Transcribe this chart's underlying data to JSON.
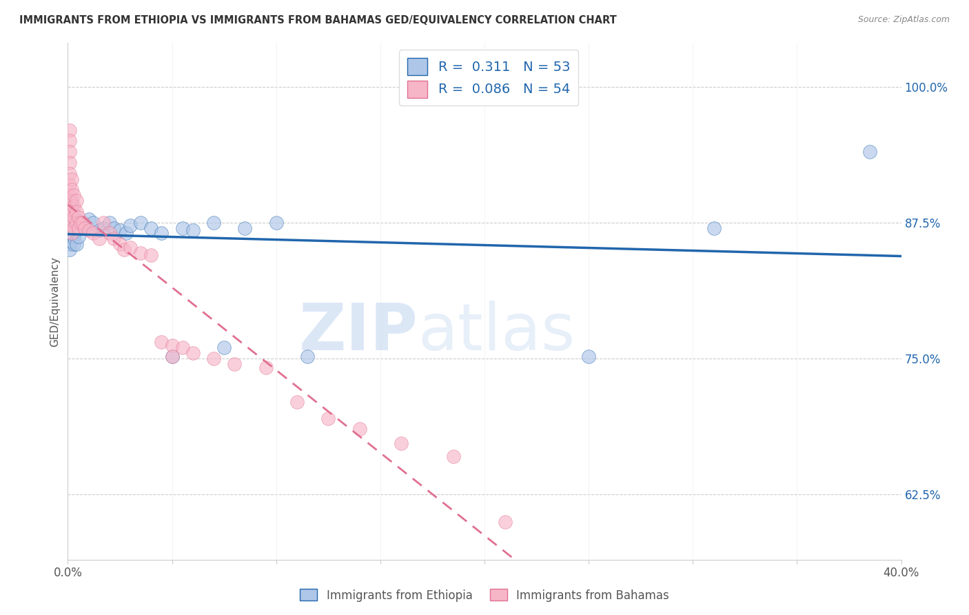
{
  "title": "IMMIGRANTS FROM ETHIOPIA VS IMMIGRANTS FROM BAHAMAS GED/EQUIVALENCY CORRELATION CHART",
  "source": "Source: ZipAtlas.com",
  "ylabel": "GED/Equivalency",
  "r_ethiopia": 0.311,
  "n_ethiopia": 53,
  "r_bahamas": 0.086,
  "n_bahamas": 54,
  "color_ethiopia": "#aec6e8",
  "color_bahamas": "#f7b6c8",
  "line_color_ethiopia": "#2166ac",
  "line_color_bahamas": "#e07090",
  "right_ytick_labels": [
    "62.5%",
    "75.0%",
    "87.5%",
    "100.0%"
  ],
  "right_yticks": [
    0.625,
    0.75,
    0.875,
    1.0
  ],
  "xmin": 0.0,
  "xmax": 0.4,
  "ymin": 0.565,
  "ymax": 1.04,
  "watermark_zip": "ZIP",
  "watermark_atlas": "atlas",
  "legend_label_ethiopia": "Immigrants from Ethiopia",
  "legend_label_bahamas": "Immigrants from Bahamas",
  "ethiopia_x": [
    0.001,
    0.001,
    0.001,
    0.001,
    0.001,
    0.001,
    0.001,
    0.001,
    0.001,
    0.001,
    0.002,
    0.002,
    0.002,
    0.002,
    0.002,
    0.002,
    0.002,
    0.003,
    0.003,
    0.003,
    0.003,
    0.003,
    0.004,
    0.004,
    0.004,
    0.005,
    0.005,
    0.006,
    0.007,
    0.008,
    0.01,
    0.012,
    0.015,
    0.017,
    0.02,
    0.022,
    0.025,
    0.028,
    0.03,
    0.035,
    0.04,
    0.045,
    0.05,
    0.055,
    0.06,
    0.07,
    0.075,
    0.085,
    0.1,
    0.115,
    0.25,
    0.31,
    0.385
  ],
  "ethiopia_y": [
    0.875,
    0.87,
    0.865,
    0.86,
    0.855,
    0.85,
    0.878,
    0.873,
    0.868,
    0.863,
    0.88,
    0.875,
    0.87,
    0.865,
    0.895,
    0.888,
    0.858,
    0.882,
    0.875,
    0.868,
    0.862,
    0.855,
    0.875,
    0.868,
    0.855,
    0.87,
    0.862,
    0.87,
    0.875,
    0.87,
    0.878,
    0.875,
    0.868,
    0.87,
    0.875,
    0.87,
    0.868,
    0.865,
    0.872,
    0.875,
    0.87,
    0.865,
    0.752,
    0.87,
    0.868,
    0.875,
    0.76,
    0.87,
    0.875,
    0.752,
    0.752,
    0.87,
    0.94
  ],
  "bahamas_x": [
    0.001,
    0.001,
    0.001,
    0.001,
    0.001,
    0.001,
    0.001,
    0.001,
    0.001,
    0.001,
    0.001,
    0.002,
    0.002,
    0.002,
    0.002,
    0.002,
    0.002,
    0.003,
    0.003,
    0.003,
    0.003,
    0.004,
    0.004,
    0.004,
    0.005,
    0.005,
    0.006,
    0.007,
    0.008,
    0.01,
    0.012,
    0.015,
    0.017,
    0.02,
    0.022,
    0.025,
    0.027,
    0.03,
    0.035,
    0.04,
    0.045,
    0.05,
    0.055,
    0.06,
    0.07,
    0.08,
    0.095,
    0.11,
    0.125,
    0.14,
    0.16,
    0.185,
    0.21,
    0.05
  ],
  "bahamas_y": [
    0.96,
    0.95,
    0.94,
    0.93,
    0.92,
    0.91,
    0.9,
    0.895,
    0.888,
    0.882,
    0.875,
    0.915,
    0.905,
    0.895,
    0.885,
    0.875,
    0.865,
    0.9,
    0.89,
    0.88,
    0.87,
    0.895,
    0.885,
    0.875,
    0.88,
    0.87,
    0.875,
    0.875,
    0.87,
    0.868,
    0.865,
    0.86,
    0.875,
    0.865,
    0.86,
    0.855,
    0.85,
    0.852,
    0.847,
    0.845,
    0.765,
    0.762,
    0.76,
    0.755,
    0.75,
    0.745,
    0.742,
    0.71,
    0.695,
    0.685,
    0.672,
    0.66,
    0.6,
    0.752
  ]
}
